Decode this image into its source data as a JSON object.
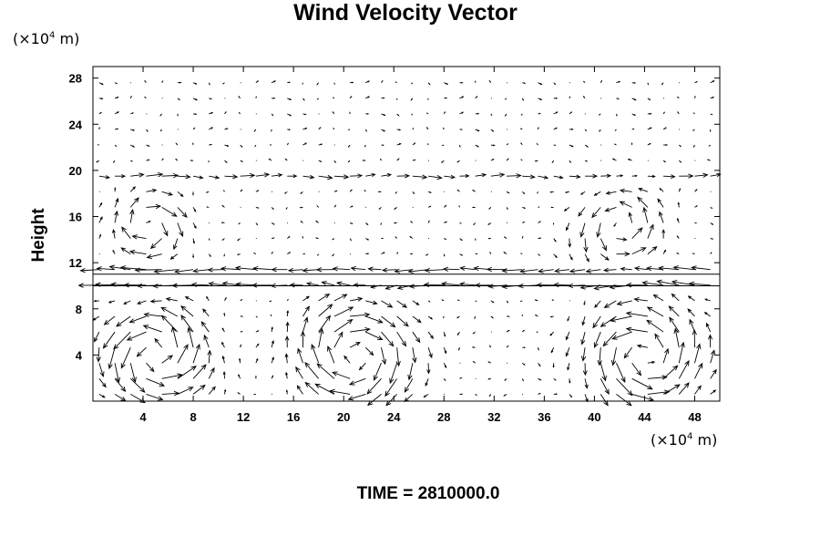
{
  "figure": {
    "title": "Wind Velocity Vector",
    "x_unit": {
      "prefix": "(×10",
      "exp": "4",
      "suffix": " m)"
    },
    "y_unit": {
      "prefix": "(×10",
      "exp": "4",
      "suffix": " m)"
    },
    "ylabel": "Height",
    "footer": "TIME = 2810000.0"
  },
  "chart_data": {
    "type": "vector_field",
    "title": "Wind Velocity Vector",
    "xlabel": "",
    "ylabel": "Height",
    "xlim": [
      0,
      50
    ],
    "ylim": [
      0,
      29
    ],
    "xticks": [
      4,
      8,
      12,
      16,
      20,
      24,
      28,
      32,
      36,
      40,
      44,
      48
    ],
    "yticks": [
      4,
      8,
      12,
      16,
      20,
      24,
      28
    ],
    "grid": false,
    "jet_lines_y": [
      10,
      11
    ],
    "flow_regions": [
      {
        "kind": "vortex",
        "center": [
          5,
          4
        ],
        "radius": 3.5,
        "sense": "ccw",
        "strength": 3.2
      },
      {
        "kind": "vortex",
        "center": [
          21,
          4
        ],
        "radius": 4,
        "sense": "cw",
        "strength": 3.0
      },
      {
        "kind": "vortex",
        "center": [
          44,
          4
        ],
        "radius": 4,
        "sense": "ccw",
        "strength": 3.0
      },
      {
        "kind": "vortex",
        "center": [
          4.5,
          15
        ],
        "radius": 2.5,
        "sense": "cw",
        "strength": 2.2
      },
      {
        "kind": "vortex",
        "center": [
          42,
          15
        ],
        "radius": 3,
        "sense": "ccw",
        "strength": 2.0
      },
      {
        "kind": "jet",
        "y_range": [
          9.5,
          11.5
        ],
        "u": -2.4
      },
      {
        "kind": "jet",
        "y_range": [
          18.5,
          19.8
        ],
        "u": 1.6
      },
      {
        "kind": "calm",
        "y_range": [
          22,
          29
        ],
        "u": 0.15
      }
    ]
  }
}
